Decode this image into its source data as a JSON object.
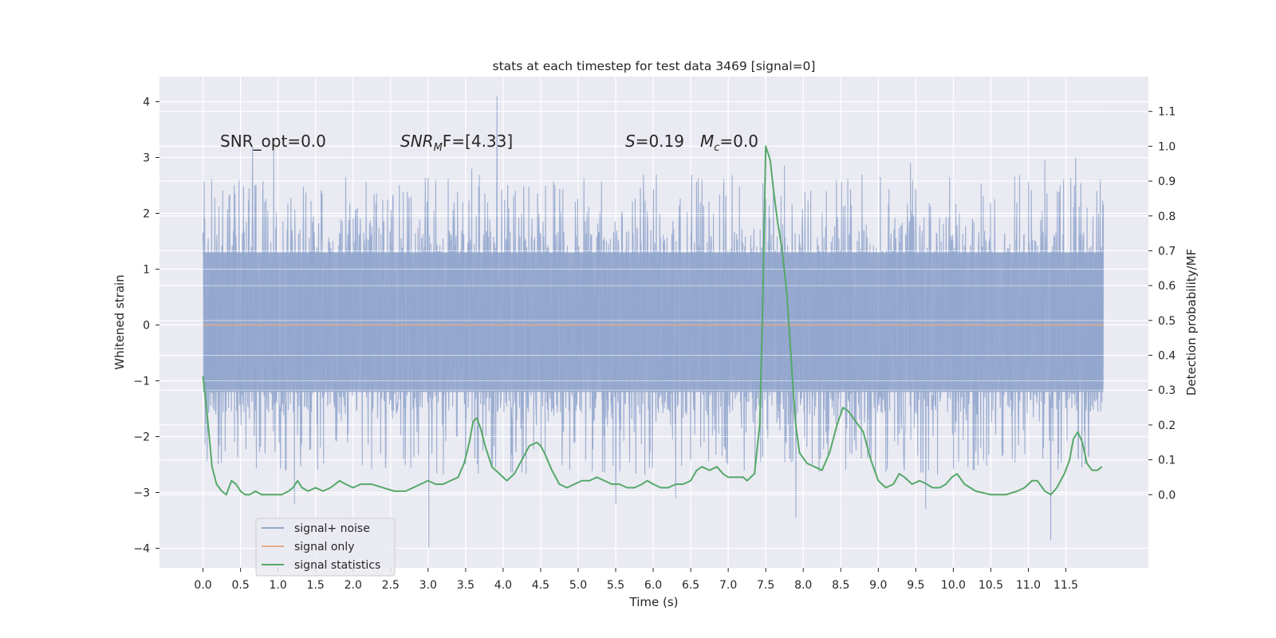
{
  "chart_data": {
    "type": "line",
    "title": "stats at each timestep for test data 3469 [signal=0]",
    "xlabel": "Time (s)",
    "ylabel": "Whitened strain",
    "y2label": "Detection probability/MF",
    "xlim": [
      -0.58,
      12.6
    ],
    "ylim": [
      -4.35,
      4.45
    ],
    "y2lim": [
      -0.21,
      1.2
    ],
    "xticks": [
      0.0,
      0.5,
      1.0,
      1.5,
      2.0,
      2.5,
      3.0,
      3.5,
      4.0,
      4.5,
      5.0,
      5.5,
      6.0,
      6.5,
      7.0,
      7.5,
      8.0,
      8.5,
      9.0,
      9.5,
      10.0,
      10.5,
      11.0,
      11.5
    ],
    "xticklabels": [
      "0.0",
      "0.5",
      "1.0",
      "1.5",
      "2.0",
      "2.5",
      "3.0",
      "3.5",
      "4.0",
      "4.5",
      "5.0",
      "5.5",
      "6.0",
      "6.5",
      "7.0",
      "7.5",
      "8.0",
      "8.5",
      "9.0",
      "9.5",
      "10.0",
      "10.5",
      "11.0",
      "11.5"
    ],
    "yticks": [
      -4,
      -3,
      -2,
      -1,
      0,
      1,
      2,
      3,
      4
    ],
    "yticklabels": [
      "−4",
      "−3",
      "−2",
      "−1",
      "0",
      "1",
      "2",
      "3",
      "4"
    ],
    "y2ticks": [
      0.0,
      0.1,
      0.2,
      0.3,
      0.4,
      0.5,
      0.6,
      0.7,
      0.8,
      0.9,
      1.0,
      1.1
    ],
    "y2ticklabels": [
      "0.0",
      "0.1",
      "0.2",
      "0.3",
      "0.4",
      "0.5",
      "0.6",
      "0.7",
      "0.8",
      "0.9",
      "1.0",
      "1.1"
    ],
    "annotations": {
      "snr_opt": "SNR_opt=0.0",
      "snr_mf_main": "SNR",
      "snr_mf_sub": "M",
      "snr_mf_rest": "F=[4.33]",
      "s_main": "S",
      "s_rest": "=0.19",
      "mc_main": "M",
      "mc_sub": "c",
      "mc_rest": "=0.0"
    },
    "legend": {
      "position": "lower-left",
      "entries": [
        "signal+ noise",
        "signal only",
        "signal statistics"
      ]
    },
    "series": [
      {
        "name": "signal+ noise",
        "color": "#92a6cd",
        "t_range": [
          0.0,
          12.0
        ],
        "core_band": [
          -1.2,
          1.3
        ],
        "typical_peak_range": [
          -2.7,
          2.7
        ],
        "max": 4.1,
        "min": -4.0,
        "spikes": [
          [
            3.92,
            4.1
          ],
          [
            3.01,
            -4.0
          ],
          [
            11.3,
            -3.85
          ],
          [
            7.9,
            -3.45
          ],
          [
            9.63,
            -3.3
          ],
          [
            0.66,
            3.2
          ],
          [
            0.94,
            3.15
          ],
          [
            1.22,
            -3.2
          ],
          [
            5.5,
            -3.2
          ],
          [
            6.3,
            -3.1
          ],
          [
            11.63,
            3.0
          ],
          [
            11.22,
            2.95
          ],
          [
            9.43,
            2.9
          ],
          [
            3.58,
            2.8
          ],
          [
            7.75,
            2.85
          ]
        ]
      },
      {
        "name": "signal only",
        "color": "#dd8452",
        "values": [
          [
            0.0,
            0.0
          ],
          [
            12.0,
            0.0
          ]
        ]
      },
      {
        "name": "signal statistics",
        "color": "#55a868",
        "axis": "right",
        "points": [
          [
            0.0,
            0.34
          ],
          [
            0.06,
            0.22
          ],
          [
            0.12,
            0.08
          ],
          [
            0.18,
            0.03
          ],
          [
            0.25,
            0.01
          ],
          [
            0.31,
            0.0
          ],
          [
            0.38,
            0.04
          ],
          [
            0.44,
            0.03
          ],
          [
            0.5,
            0.01
          ],
          [
            0.56,
            0.0
          ],
          [
            0.62,
            0.0
          ],
          [
            0.7,
            0.01
          ],
          [
            0.78,
            0.0
          ],
          [
            0.87,
            0.0
          ],
          [
            0.96,
            0.0
          ],
          [
            1.05,
            0.0
          ],
          [
            1.14,
            0.01
          ],
          [
            1.2,
            0.02
          ],
          [
            1.26,
            0.04
          ],
          [
            1.32,
            0.02
          ],
          [
            1.4,
            0.01
          ],
          [
            1.5,
            0.02
          ],
          [
            1.6,
            0.01
          ],
          [
            1.7,
            0.02
          ],
          [
            1.82,
            0.04
          ],
          [
            1.9,
            0.03
          ],
          [
            2.0,
            0.02
          ],
          [
            2.1,
            0.03
          ],
          [
            2.25,
            0.03
          ],
          [
            2.4,
            0.02
          ],
          [
            2.55,
            0.01
          ],
          [
            2.7,
            0.01
          ],
          [
            2.8,
            0.02
          ],
          [
            2.9,
            0.03
          ],
          [
            3.0,
            0.04
          ],
          [
            3.1,
            0.03
          ],
          [
            3.2,
            0.03
          ],
          [
            3.3,
            0.04
          ],
          [
            3.4,
            0.05
          ],
          [
            3.48,
            0.09
          ],
          [
            3.55,
            0.15
          ],
          [
            3.6,
            0.21
          ],
          [
            3.65,
            0.22
          ],
          [
            3.7,
            0.19
          ],
          [
            3.76,
            0.14
          ],
          [
            3.85,
            0.08
          ],
          [
            3.95,
            0.06
          ],
          [
            4.05,
            0.04
          ],
          [
            4.15,
            0.06
          ],
          [
            4.25,
            0.1
          ],
          [
            4.35,
            0.14
          ],
          [
            4.45,
            0.15
          ],
          [
            4.5,
            0.14
          ],
          [
            4.55,
            0.12
          ],
          [
            4.65,
            0.07
          ],
          [
            4.75,
            0.03
          ],
          [
            4.85,
            0.02
          ],
          [
            4.95,
            0.03
          ],
          [
            5.05,
            0.04
          ],
          [
            5.15,
            0.04
          ],
          [
            5.25,
            0.05
          ],
          [
            5.35,
            0.04
          ],
          [
            5.45,
            0.03
          ],
          [
            5.55,
            0.03
          ],
          [
            5.65,
            0.02
          ],
          [
            5.75,
            0.02
          ],
          [
            5.85,
            0.03
          ],
          [
            5.92,
            0.04
          ],
          [
            6.0,
            0.03
          ],
          [
            6.1,
            0.02
          ],
          [
            6.2,
            0.02
          ],
          [
            6.3,
            0.03
          ],
          [
            6.4,
            0.03
          ],
          [
            6.5,
            0.04
          ],
          [
            6.58,
            0.07
          ],
          [
            6.65,
            0.08
          ],
          [
            6.75,
            0.07
          ],
          [
            6.85,
            0.08
          ],
          [
            6.93,
            0.06
          ],
          [
            7.0,
            0.05
          ],
          [
            7.1,
            0.05
          ],
          [
            7.2,
            0.05
          ],
          [
            7.25,
            0.04
          ],
          [
            7.35,
            0.06
          ],
          [
            7.42,
            0.2
          ],
          [
            7.46,
            0.55
          ],
          [
            7.5,
            1.0
          ],
          [
            7.56,
            0.96
          ],
          [
            7.6,
            0.88
          ],
          [
            7.66,
            0.78
          ],
          [
            7.72,
            0.7
          ],
          [
            7.78,
            0.58
          ],
          [
            7.82,
            0.45
          ],
          [
            7.86,
            0.32
          ],
          [
            7.9,
            0.2
          ],
          [
            7.95,
            0.12
          ],
          [
            8.05,
            0.09
          ],
          [
            8.15,
            0.08
          ],
          [
            8.25,
            0.07
          ],
          [
            8.35,
            0.12
          ],
          [
            8.45,
            0.2
          ],
          [
            8.53,
            0.25
          ],
          [
            8.6,
            0.24
          ],
          [
            8.7,
            0.21
          ],
          [
            8.8,
            0.18
          ],
          [
            8.9,
            0.1
          ],
          [
            9.0,
            0.04
          ],
          [
            9.1,
            0.02
          ],
          [
            9.2,
            0.03
          ],
          [
            9.28,
            0.06
          ],
          [
            9.35,
            0.05
          ],
          [
            9.45,
            0.03
          ],
          [
            9.55,
            0.04
          ],
          [
            9.65,
            0.03
          ],
          [
            9.72,
            0.02
          ],
          [
            9.82,
            0.02
          ],
          [
            9.9,
            0.03
          ],
          [
            9.98,
            0.05
          ],
          [
            10.05,
            0.06
          ],
          [
            10.15,
            0.03
          ],
          [
            10.3,
            0.01
          ],
          [
            10.5,
            0.0
          ],
          [
            10.7,
            0.0
          ],
          [
            10.85,
            0.01
          ],
          [
            10.95,
            0.02
          ],
          [
            11.05,
            0.04
          ],
          [
            11.12,
            0.04
          ],
          [
            11.22,
            0.01
          ],
          [
            11.3,
            0.0
          ],
          [
            11.38,
            0.02
          ],
          [
            11.48,
            0.06
          ],
          [
            11.55,
            0.1
          ],
          [
            11.6,
            0.16
          ],
          [
            11.66,
            0.18
          ],
          [
            11.72,
            0.15
          ],
          [
            11.78,
            0.09
          ],
          [
            11.85,
            0.07
          ],
          [
            11.92,
            0.07
          ],
          [
            11.98,
            0.08
          ]
        ]
      }
    ]
  }
}
